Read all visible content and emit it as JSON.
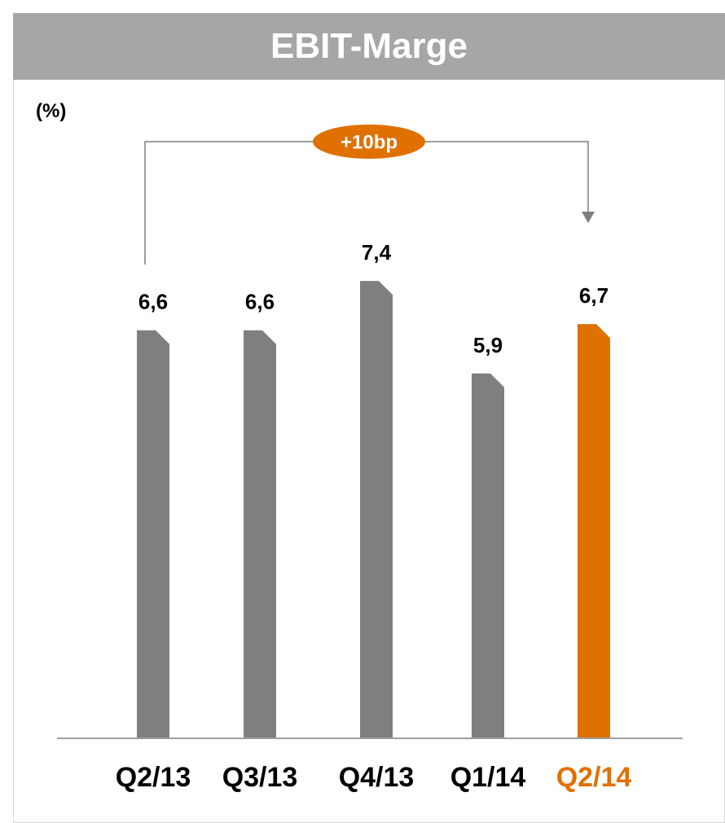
{
  "title": "EBIT-Marge",
  "unit_label": "(%)",
  "colors": {
    "header_bg": "#a6a6a6",
    "bar_default": "#7f7f7f",
    "bar_highlight": "#e07000",
    "axis": "#7f7f7f",
    "tick_default": "#000000"
  },
  "chart_data": {
    "type": "bar",
    "categories": [
      "Q2/13",
      "Q3/13",
      "Q4/13",
      "Q1/14",
      "Q2/14"
    ],
    "values": [
      6.6,
      6.6,
      7.4,
      5.9,
      6.7
    ],
    "value_labels": [
      "6,6",
      "6,6",
      "7,4",
      "5,9",
      "6,7"
    ],
    "highlight_index": 4,
    "title": "EBIT-Marge",
    "xlabel": "",
    "ylabel": "(%)",
    "ylim": [
      0,
      8
    ],
    "grid": false,
    "annotation": {
      "text": "+10bp",
      "from": "Q2/13",
      "to": "Q2/14"
    }
  }
}
